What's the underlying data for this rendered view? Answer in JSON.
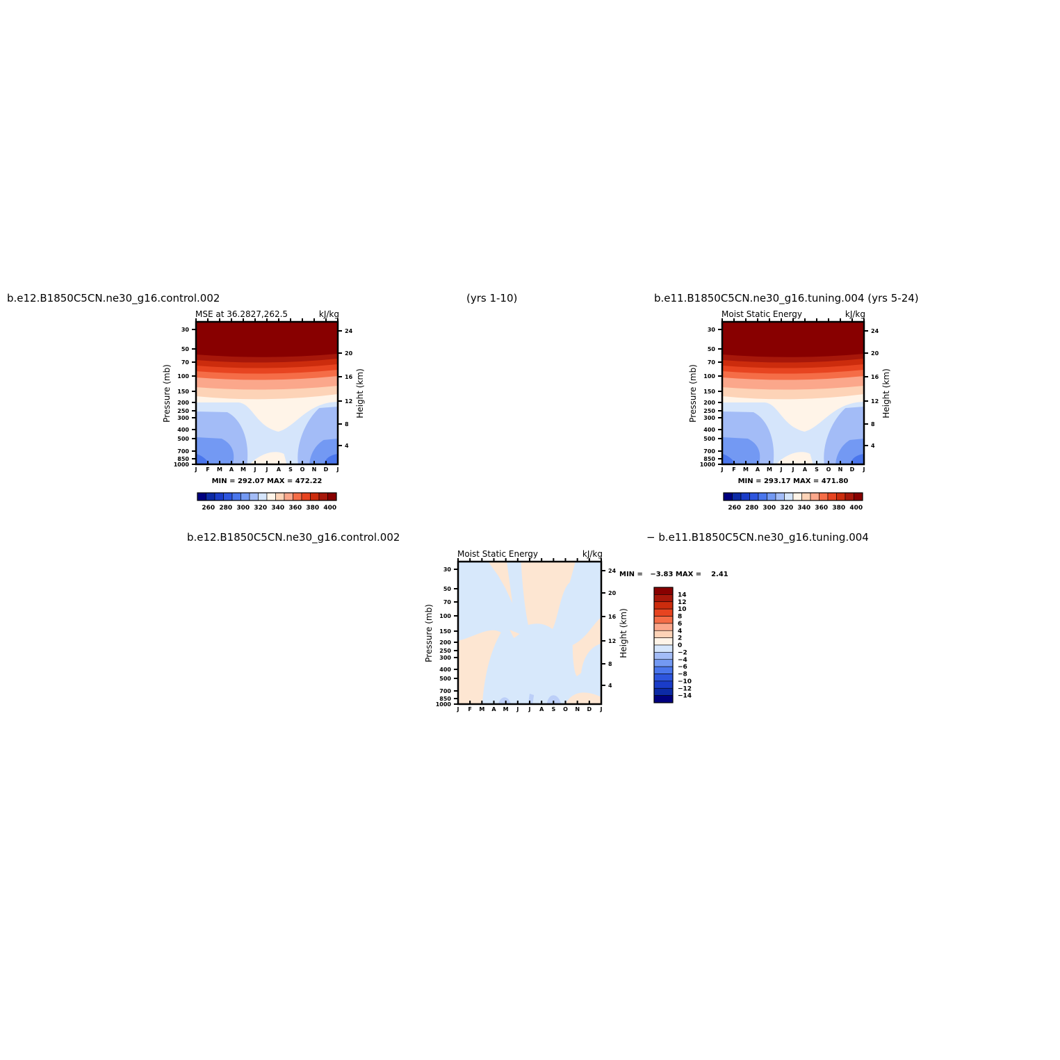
{
  "header": {
    "case1": "b.e12.B1850C5CN.ne30_g16.control.002",
    "years1": "(yrs 1-10)",
    "case2": "b.e11.B1850C5CN.ne30_g16.tuning.004 (yrs 5-24)",
    "diff_case1": "b.e12.B1850C5CN.ne30_g16.control.002",
    "diff_case2": "− b.e11.B1850C5CN.ne30_g16.tuning.004"
  },
  "colors": {
    "diverging": [
      "#00007f",
      "#0c2aa6",
      "#1a3cc8",
      "#2d55de",
      "#4a76ec",
      "#7399f3",
      "#a3bcf7",
      "#d5e5fb",
      "#fff4e8",
      "#fdd3b7",
      "#fba78b",
      "#f56d47",
      "#e74420",
      "#cc2c0d",
      "#a7170a",
      "#880000"
    ],
    "anomaly_pos": "#fde6d2",
    "anomaly_neg": "#d7e8fb",
    "anomaly_neg2": "#bccff8"
  },
  "chart_data": [
    {
      "type": "heatmap",
      "panel": "top-left",
      "title_left": "MSE at 36.2827,262.5",
      "units": "kJ/kg",
      "ylabel": "Pressure (mb)",
      "y2label": "Height (km)",
      "x_ticks": [
        "J",
        "F",
        "M",
        "A",
        "M",
        "J",
        "J",
        "A",
        "S",
        "O",
        "N",
        "D",
        "J"
      ],
      "pressure_levels": [
        30,
        50,
        70,
        100,
        150,
        200,
        250,
        300,
        400,
        500,
        700,
        850,
        1000
      ],
      "height_ticks": [
        "24",
        "20",
        "16",
        "12",
        "8",
        "4"
      ],
      "stats": "MIN = 292.07 MAX = 472.22",
      "colorbar": {
        "orientation": "horizontal",
        "labels": [
          "260",
          "280",
          "300",
          "320",
          "340",
          "360",
          "380",
          "400"
        ]
      },
      "grid": false
    },
    {
      "type": "heatmap",
      "panel": "top-right",
      "title_left": "Moist Static Energy",
      "units": "kJ/kg",
      "ylabel": "Pressure (mb)",
      "y2label": "Height (km)",
      "x_ticks": [
        "J",
        "F",
        "M",
        "A",
        "M",
        "J",
        "J",
        "A",
        "S",
        "O",
        "N",
        "D",
        "J"
      ],
      "pressure_levels": [
        30,
        50,
        70,
        100,
        150,
        200,
        250,
        300,
        400,
        500,
        700,
        850,
        1000
      ],
      "height_ticks": [
        "24",
        "20",
        "16",
        "12",
        "8",
        "4"
      ],
      "stats": "MIN = 293.17 MAX = 471.80",
      "colorbar": {
        "orientation": "horizontal",
        "labels": [
          "260",
          "280",
          "300",
          "320",
          "340",
          "360",
          "380",
          "400"
        ]
      },
      "grid": false
    },
    {
      "type": "heatmap",
      "panel": "bottom-difference",
      "title_left": "Moist Static Energy",
      "units": "kJ/kg",
      "ylabel": "Pressure (mb)",
      "y2label": "Height (km)",
      "x_ticks": [
        "J",
        "F",
        "M",
        "A",
        "M",
        "J",
        "J",
        "A",
        "S",
        "O",
        "N",
        "D",
        "J"
      ],
      "pressure_levels": [
        30,
        50,
        70,
        100,
        150,
        200,
        250,
        300,
        400,
        500,
        700,
        850,
        1000
      ],
      "height_ticks": [
        "24",
        "20",
        "16",
        "12",
        "8",
        "4"
      ],
      "stats": "MIN =   −3.83 MAX =    2.41",
      "colorbar": {
        "orientation": "vertical",
        "labels": [
          "14",
          "12",
          "10",
          "8",
          "6",
          "4",
          "2",
          "0",
          "−2",
          "−4",
          "−6",
          "−8",
          "−10",
          "−12",
          "−14"
        ]
      },
      "grid": false
    }
  ]
}
